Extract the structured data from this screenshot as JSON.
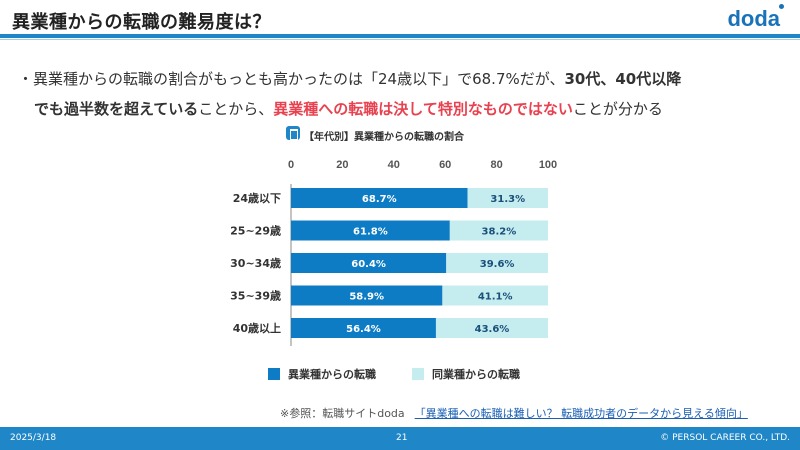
{
  "header": {
    "title": "異業種からの転職の難易度は？",
    "logo": "doda"
  },
  "body_text": {
    "prefix": "・異業種からの転職の割合がもっとも高かったのは「24歳以下」で68.7%だが、",
    "bold1": "30代、40代以降",
    "line2_bold": "でも過半数を超えている",
    "mid": "ことから、",
    "red": "異業種への転職は決して特別なものではない",
    "suffix": "ことが分かる"
  },
  "chart_header": "【年代別】異業種からの転職の割合",
  "chart_data": {
    "type": "bar",
    "orientation": "horizontal",
    "stacked": true,
    "categories": [
      "24歳以下",
      "25~29歳",
      "30~34歳",
      "35~39歳",
      "40歳以上"
    ],
    "series": [
      {
        "name": "異業種からの転職",
        "values": [
          68.7,
          61.8,
          60.4,
          58.9,
          56.4
        ],
        "color": "#0e7cc4",
        "labels": [
          "68.7%",
          "61.8%",
          "60.4%",
          "58.9%",
          "56.4%"
        ]
      },
      {
        "name": "同業種からの転職",
        "values": [
          31.3,
          38.2,
          39.6,
          41.1,
          43.6
        ],
        "color": "#c5ecee",
        "labels": [
          "31.3%",
          "38.2%",
          "39.6%",
          "41.1%",
          "43.6%"
        ]
      }
    ],
    "xlim": [
      0,
      100
    ],
    "xticks": [
      "0",
      "20",
      "40",
      "60",
      "80",
      "100"
    ],
    "grid": false,
    "legend": "bottom"
  },
  "reference": {
    "prefix": "※参照：転職サイトdoda",
    "link": "「異業種への転職は難しい？ 転職成功者のデータから見える傾向」"
  },
  "footer": {
    "date": "2025/3/18",
    "page": "21",
    "copyright": "© PERSOL CAREER CO., LTD."
  },
  "colors": {
    "accent": "#1f86c8",
    "highlight_red": "#e8414f"
  }
}
